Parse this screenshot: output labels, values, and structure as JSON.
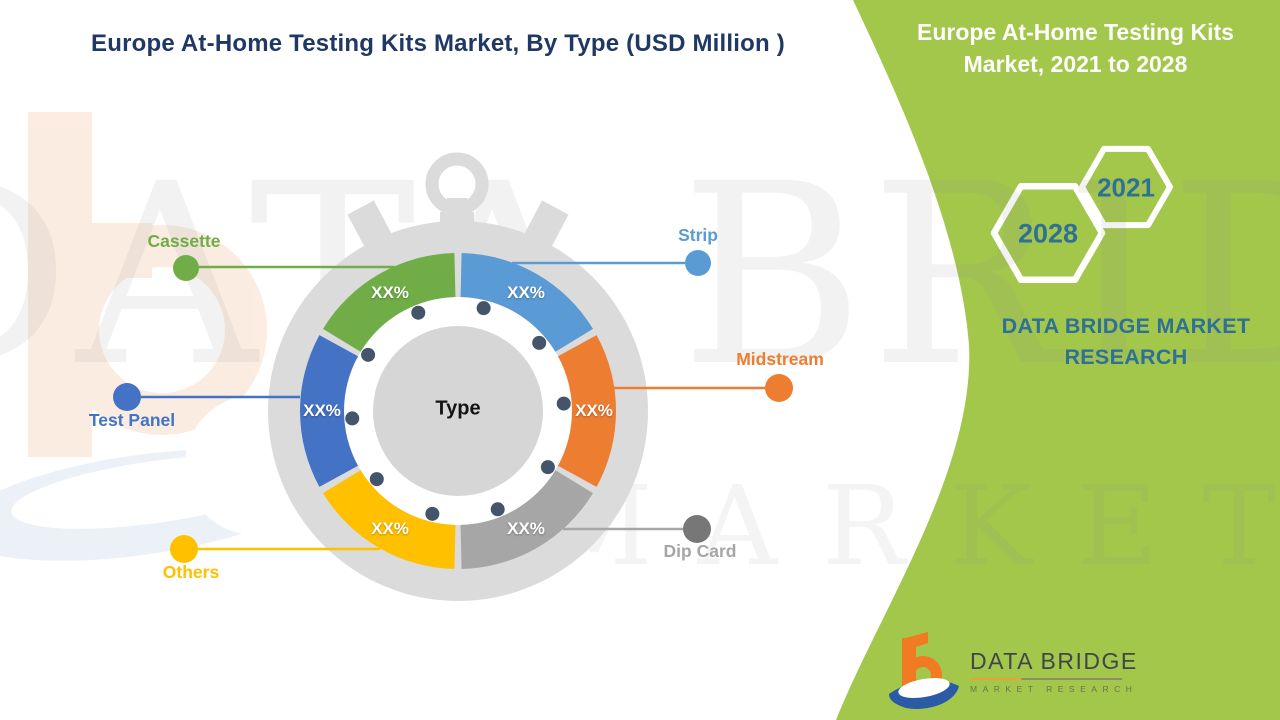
{
  "page": {
    "title": "Europe At-Home Testing Kits Market, By Type (USD Million )"
  },
  "side_panel": {
    "bg_color": "#A2C74B",
    "text_color": "#2E7195",
    "title": "Europe At-Home Testing Kits Market, 2021 to 2028",
    "hexagons": [
      {
        "year": "2028"
      },
      {
        "year": "2021"
      }
    ],
    "brand_text": "DATA BRIDGE MARKET RESEARCH"
  },
  "watermark": {
    "line1": "DATA BRIDGE",
    "line2": "MARKET RESEARCH"
  },
  "logo": {
    "name": "DATA BRIDGE",
    "tagline": "MARKET RESEARCH"
  },
  "chart_data": {
    "type": "pie",
    "variant": "donut-stopwatch",
    "center_label": "Type",
    "legend_position": "radial-callouts",
    "tick_dot_color": "#44546A",
    "watch_color": "#DBDBDB",
    "segments": [
      {
        "label": "Strip",
        "value_label": "XX%",
        "sweep_deg": 60,
        "color": "#5B9BD5"
      },
      {
        "label": "Midstream",
        "value_label": "XX%",
        "sweep_deg": 60,
        "color": "#ED7D31"
      },
      {
        "label": "Dip Card",
        "value_label": "XX%",
        "sweep_deg": 60,
        "color": "#A6A6A6",
        "dot_color": "#777777"
      },
      {
        "label": "Others",
        "value_label": "XX%",
        "sweep_deg": 60,
        "color": "#FFC000"
      },
      {
        "label": "Test Panel",
        "value_label": "XX%",
        "sweep_deg": 60,
        "color": "#4472C4"
      },
      {
        "label": "Cassette",
        "value_label": "XX%",
        "sweep_deg": 60,
        "color": "#70AD47"
      }
    ]
  }
}
